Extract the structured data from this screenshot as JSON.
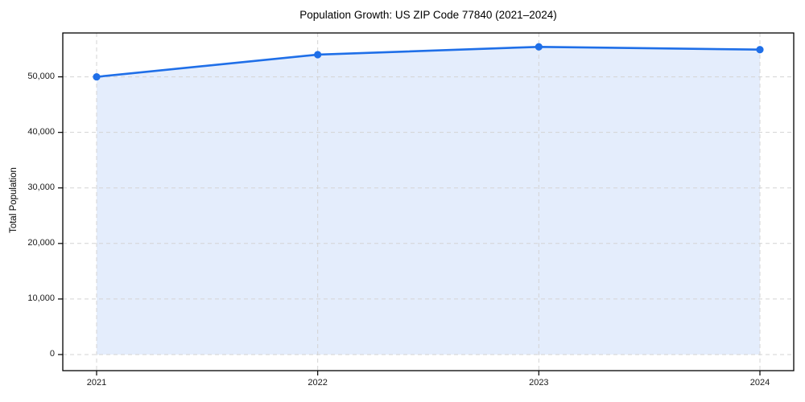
{
  "chart_data": {
    "type": "area",
    "title": "Population Growth: US ZIP Code 77840 (2021–2024)",
    "xlabel": "",
    "ylabel": "Total Population",
    "categories": [
      "2021",
      "2022",
      "2023",
      "2024"
    ],
    "series": [
      {
        "name": "Total Population",
        "values": [
          50000,
          54000,
          55400,
          54900
        ]
      }
    ],
    "y_ticks": [
      {
        "value": 0,
        "label": "0"
      },
      {
        "value": 10000,
        "label": "10,000"
      },
      {
        "value": 20000,
        "label": "20,000"
      },
      {
        "value": 30000,
        "label": "30,000"
      },
      {
        "value": 40000,
        "label": "40,000"
      },
      {
        "value": 50000,
        "label": "50,000"
      }
    ],
    "ylim": [
      -2900,
      57900
    ],
    "grid": true,
    "legend": "none",
    "colors": {
      "line": "#1f6fe8",
      "fill": "#1f6fe8",
      "fill_opacity": 0.12,
      "grid": "#d3d3d3",
      "spine": "#000000",
      "text": "#1a1a1a"
    },
    "marker": "circle"
  }
}
